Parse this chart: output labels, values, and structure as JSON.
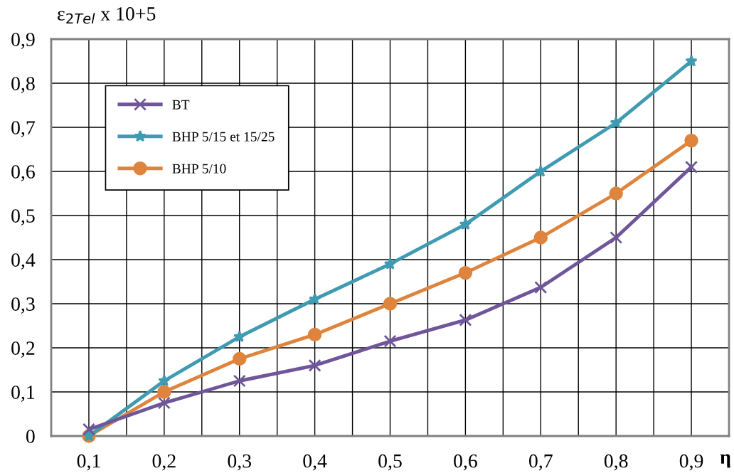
{
  "chart_data": {
    "type": "line",
    "ylabel": "ε$_{2Tel}$ x 10+5",
    "xlabel": "η",
    "x": [
      0.1,
      0.2,
      0.3,
      0.4,
      0.5,
      0.6,
      0.7,
      0.8,
      0.9
    ],
    "series": [
      {
        "name": "BT",
        "color": "#6f559a",
        "marker": "cross",
        "values": [
          0.015,
          0.075,
          0.125,
          0.16,
          0.215,
          0.263,
          0.337,
          0.45,
          0.61
        ]
      },
      {
        "name": "BHP 5/15 et 15/25",
        "color": "#3f9bb1",
        "marker": "star",
        "values": [
          0,
          0.125,
          0.225,
          0.31,
          0.39,
          0.48,
          0.6,
          0.71,
          0.85
        ]
      },
      {
        "name": "BHP 5/10",
        "color": "#de843d",
        "marker": "circle",
        "values": [
          0,
          0.1,
          0.175,
          0.23,
          0.3,
          0.37,
          0.45,
          0.55,
          0.67
        ]
      }
    ],
    "xlim": [
      0.05,
      0.95
    ],
    "xticks": [
      {
        "value": 0.05,
        "label": null
      },
      {
        "value": 0.1,
        "label": "0,1"
      },
      {
        "value": 0.15,
        "label": null
      },
      {
        "value": 0.2,
        "label": "0,2"
      },
      {
        "value": 0.25,
        "label": null
      },
      {
        "value": 0.3,
        "label": "0,3"
      },
      {
        "value": 0.35,
        "label": null
      },
      {
        "value": 0.4,
        "label": "0,4"
      },
      {
        "value": 0.45,
        "label": null
      },
      {
        "value": 0.5,
        "label": "0,5"
      },
      {
        "value": 0.55,
        "label": null
      },
      {
        "value": 0.6,
        "label": "0,6"
      },
      {
        "value": 0.65,
        "label": null
      },
      {
        "value": 0.7,
        "label": "0,7"
      },
      {
        "value": 0.75,
        "label": null
      },
      {
        "value": 0.8,
        "label": "0,8"
      },
      {
        "value": 0.85,
        "label": null
      },
      {
        "value": 0.9,
        "label": "0,9"
      },
      {
        "value": 0.95,
        "label": null
      }
    ],
    "ylim": [
      0,
      0.9
    ],
    "yticks": [
      {
        "value": 0,
        "label": "0"
      },
      {
        "value": 0.1,
        "label": "0,1"
      },
      {
        "value": 0.2,
        "label": "0,2"
      },
      {
        "value": 0.3,
        "label": "0,3"
      },
      {
        "value": 0.4,
        "label": "0,4"
      },
      {
        "value": 0.5,
        "label": "0,5"
      },
      {
        "value": 0.6,
        "label": "0,6"
      },
      {
        "value": 0.7,
        "label": "0,7"
      },
      {
        "value": 0.8,
        "label": "0,8"
      },
      {
        "value": 0.9,
        "label": "0,9"
      }
    ],
    "grid": true,
    "legend": "top left",
    "line_style": "solid"
  }
}
